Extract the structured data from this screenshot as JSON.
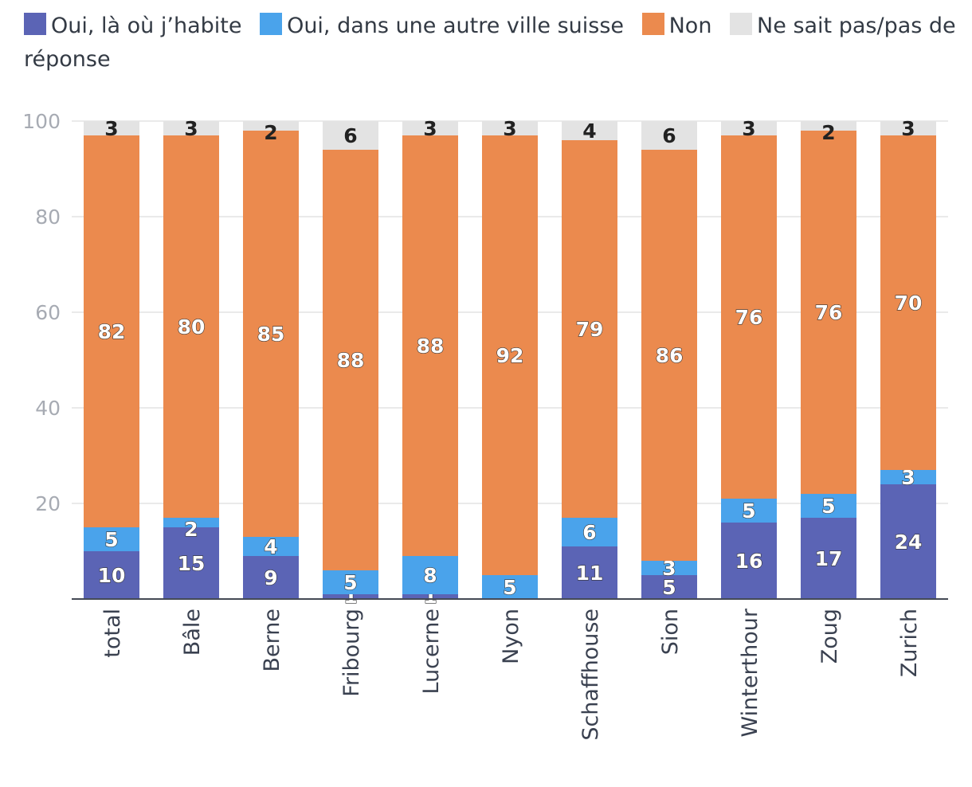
{
  "chart_data": {
    "type": "bar",
    "stacked": true,
    "categories": [
      "total",
      "Bâle",
      "Berne",
      "Fribourg",
      "Lucerne",
      "Nyon",
      "Schaffhouse",
      "Sion",
      "Winterthour",
      "Zoug",
      "Zurich"
    ],
    "series": [
      {
        "name": "Oui, là où j’habite",
        "color": "#5b64b5",
        "values": [
          10,
          15,
          9,
          1,
          1,
          0,
          11,
          5,
          16,
          17,
          24
        ]
      },
      {
        "name": "Oui, dans une autre ville suisse",
        "color": "#4aa3eb",
        "values": [
          5,
          2,
          4,
          5,
          8,
          5,
          6,
          3,
          5,
          5,
          3
        ]
      },
      {
        "name": "Non",
        "color": "#eb8a4e",
        "values": [
          82,
          80,
          85,
          88,
          88,
          92,
          79,
          86,
          76,
          76,
          70
        ]
      },
      {
        "name": "Ne sait pas/pas de réponse",
        "color": "#e3e3e3",
        "values": [
          3,
          3,
          2,
          6,
          3,
          3,
          4,
          6,
          3,
          2,
          3
        ]
      }
    ],
    "ylim": [
      0,
      100
    ],
    "yticks": [
      20,
      40,
      60,
      80,
      100
    ],
    "legend_position": "top",
    "title": "",
    "xlabel": "",
    "ylabel": ""
  }
}
